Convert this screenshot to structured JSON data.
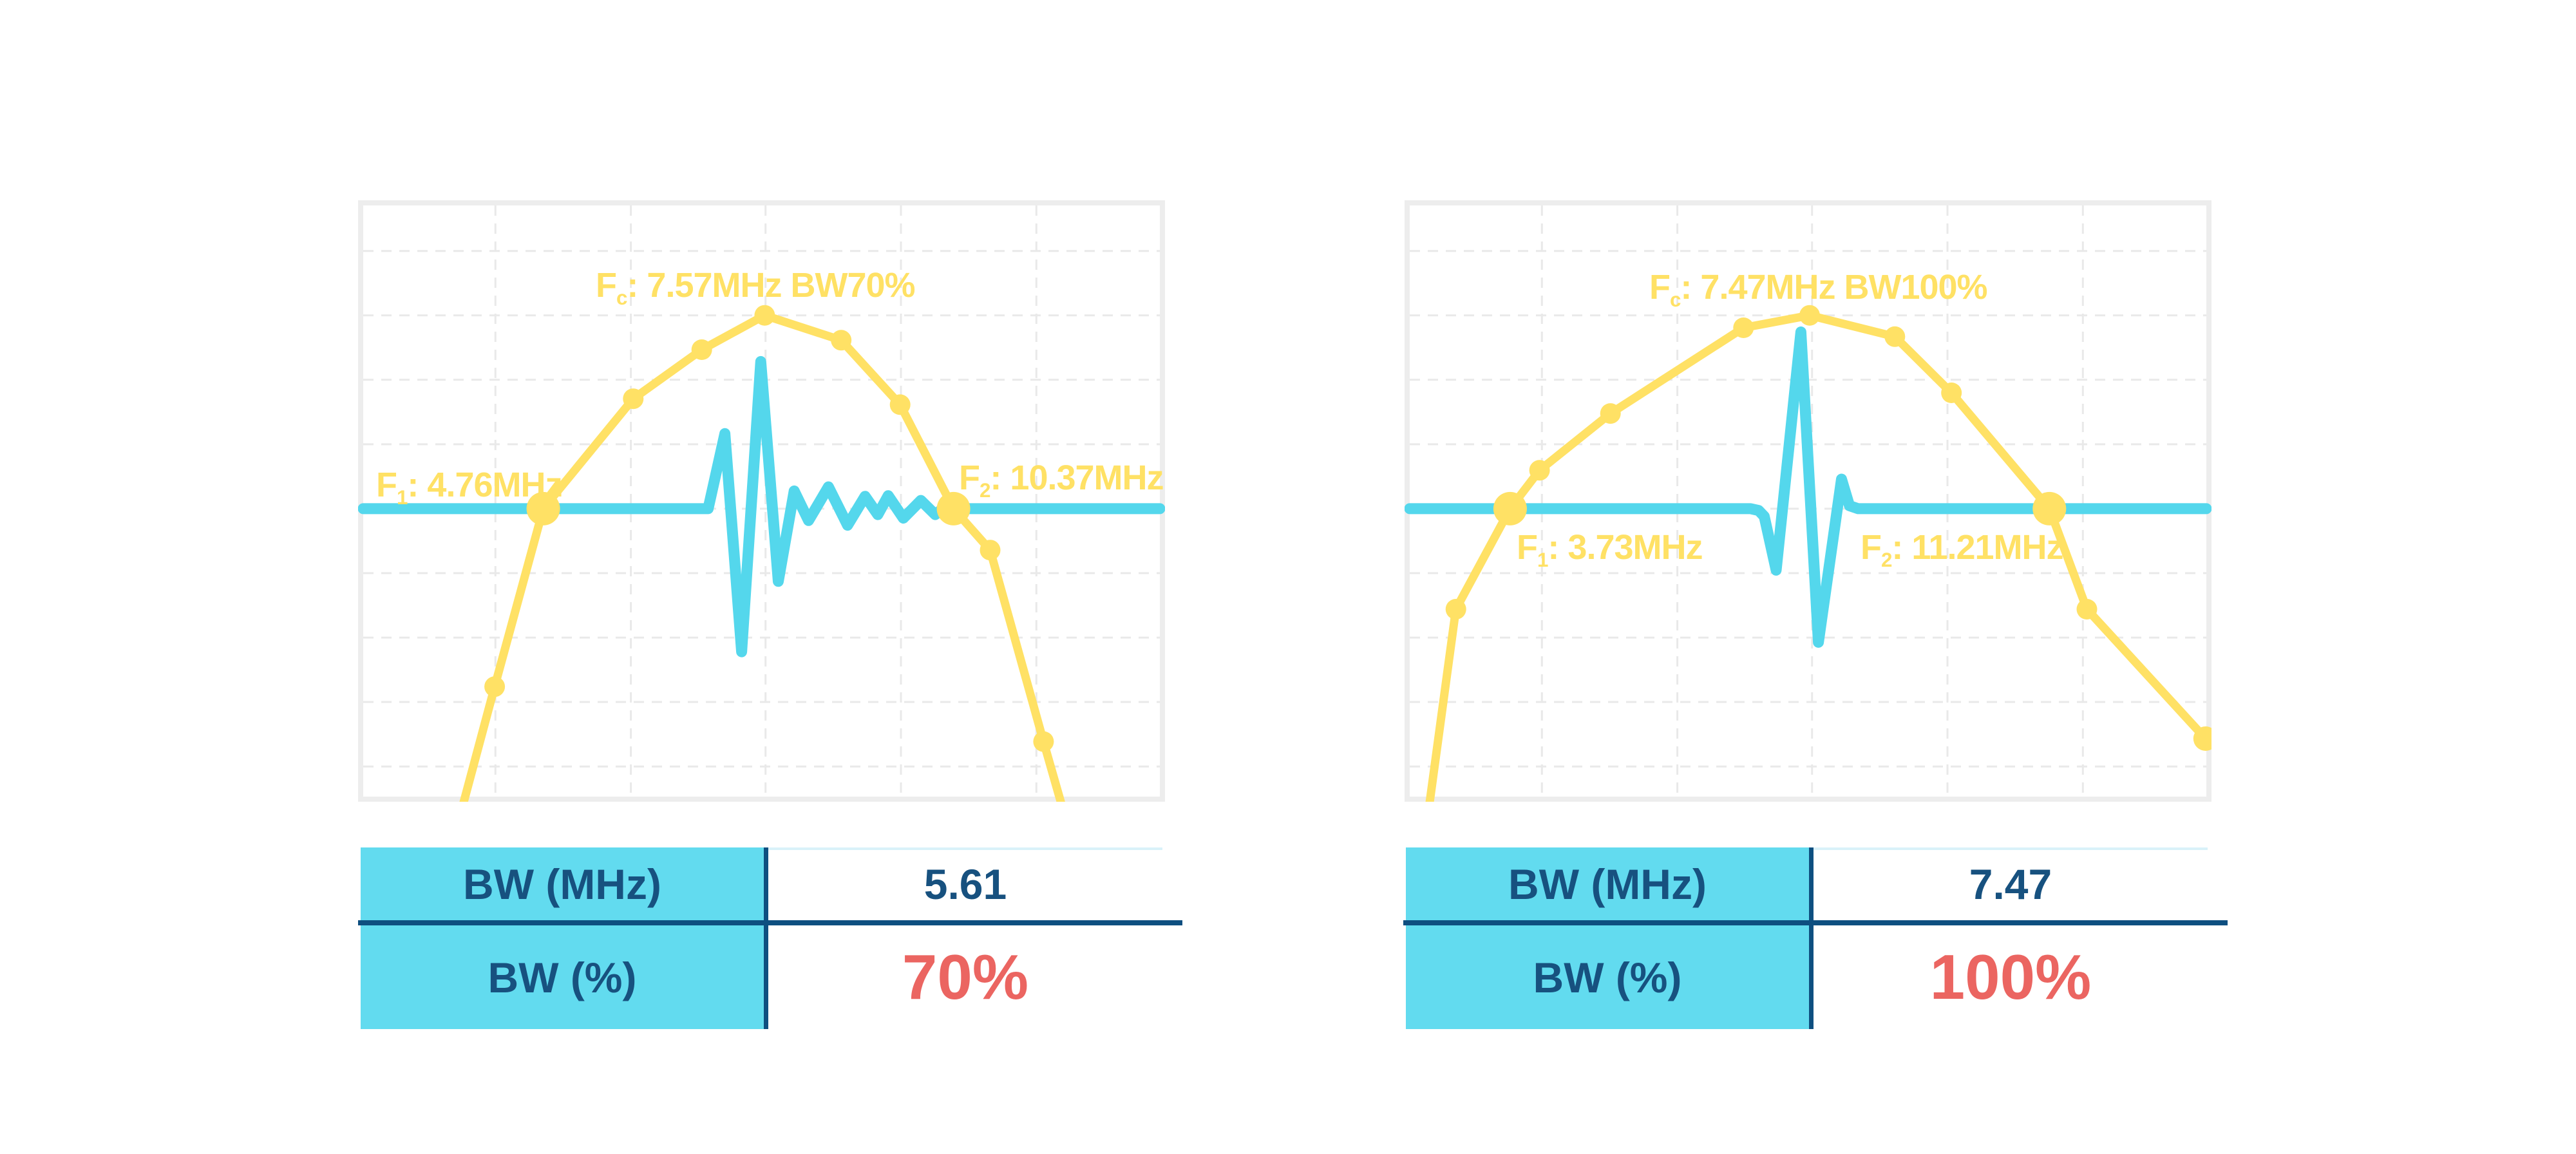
{
  "colors": {
    "yellow": "#FFE165",
    "cyan": "#54D7EC",
    "navy_line": "#0E4F80",
    "navy_text": "#17517F",
    "red": "#EB6561",
    "table_label_bg": "#62DBEF",
    "value_cell_topline": "#D9F2F9",
    "chart_border": "#EDEDED",
    "grid": "#E9E9E9",
    "background": "#FFFFFF"
  },
  "chart_data": [
    {
      "type": "line",
      "id": "pulse-spectrum-bw70",
      "title": {
        "prefix": "F",
        "sub": "c",
        "rest": ": 7.57MHz BW70%"
      },
      "f1_label": {
        "prefix": "F",
        "sub": "1",
        "rest": ": 4.76MHz"
      },
      "f2_label": {
        "prefix": "F",
        "sub": "2",
        "rest": ": 10.37MHz"
      },
      "values": {
        "fc_mhz": 7.57,
        "bw_percent": 70,
        "f1_mhz": 4.76,
        "f2_mhz": 10.37,
        "bw_mhz": 5.61
      },
      "axes": {
        "x_ticks": "none",
        "y_ticks": "none",
        "grid": "dashed",
        "note": "x = frequency (MHz, unlabeled axis); y = amplitude (unlabeled); baseline of pulse coincides with F1/F2 crossing level"
      },
      "series": [
        {
          "name": "spectrum",
          "color_key": "yellow",
          "points": [
            [
              0.124,
              1.02
            ],
            [
              0.165,
              0.814
            ],
            [
              0.226,
              0.513
            ],
            [
              0.339,
              0.327
            ],
            [
              0.425,
              0.244
            ],
            [
              0.504,
              0.186
            ],
            [
              0.6,
              0.228
            ],
            [
              0.674,
              0.337
            ],
            [
              0.741,
              0.513
            ],
            [
              0.787,
              0.583
            ],
            [
              0.854,
              0.907
            ],
            [
              0.878,
              1.02
            ]
          ],
          "markers": [
            [
              0.165,
              0.814
            ],
            [
              0.339,
              0.327
            ],
            [
              0.425,
              0.244
            ],
            [
              0.504,
              0.186
            ],
            [
              0.6,
              0.228
            ],
            [
              0.674,
              0.337
            ],
            [
              0.787,
              0.583
            ],
            [
              0.854,
              0.907
            ]
          ],
          "markers_big": [
            [
              0.226,
              0.513
            ],
            [
              0.741,
              0.513
            ]
          ]
        },
        {
          "name": "pulse-waveform",
          "color_key": "cyan",
          "points": [
            [
              0.0,
              0.513
            ],
            [
              0.425,
              0.513
            ],
            [
              0.433,
              0.513
            ],
            [
              0.454,
              0.386
            ],
            [
              0.475,
              0.755
            ],
            [
              0.499,
              0.264
            ],
            [
              0.521,
              0.636
            ],
            [
              0.541,
              0.483
            ],
            [
              0.559,
              0.533
            ],
            [
              0.584,
              0.476
            ],
            [
              0.608,
              0.541
            ],
            [
              0.63,
              0.492
            ],
            [
              0.646,
              0.523
            ],
            [
              0.659,
              0.491
            ],
            [
              0.678,
              0.529
            ],
            [
              0.7,
              0.499
            ],
            [
              0.718,
              0.523
            ],
            [
              0.732,
              0.508
            ],
            [
              0.745,
              0.513
            ],
            [
              1.0,
              0.513
            ]
          ]
        }
      ]
    },
    {
      "type": "line",
      "id": "pulse-spectrum-bw100",
      "title": {
        "prefix": "F",
        "sub": "c",
        "rest": ": 7.47MHz BW100%"
      },
      "f1_label": {
        "prefix": "F",
        "sub": "1",
        "rest": ": 3.73MHz"
      },
      "f2_label": {
        "prefix": "F",
        "sub": "2",
        "rest": ": 11.21MHz"
      },
      "values": {
        "fc_mhz": 7.47,
        "bw_percent": 100,
        "f1_mhz": 3.73,
        "f2_mhz": 11.21,
        "bw_mhz": 7.47
      },
      "axes": {
        "x_ticks": "none",
        "y_ticks": "none",
        "grid": "dashed",
        "note": "x = frequency (MHz, unlabeled axis); y = amplitude (unlabeled)"
      },
      "series": [
        {
          "name": "spectrum",
          "color_key": "yellow",
          "points": [
            [
              0.024,
              1.02
            ],
            [
              0.058,
              0.683
            ],
            [
              0.126,
              0.513
            ],
            [
              0.163,
              0.448
            ],
            [
              0.252,
              0.352
            ],
            [
              0.419,
              0.207
            ],
            [
              0.502,
              0.186
            ],
            [
              0.609,
              0.222
            ],
            [
              0.68,
              0.317
            ],
            [
              0.803,
              0.513
            ],
            [
              0.85,
              0.683
            ],
            [
              0.999,
              0.902
            ]
          ],
          "markers": [
            [
              0.058,
              0.683
            ],
            [
              0.163,
              0.448
            ],
            [
              0.252,
              0.352
            ],
            [
              0.419,
              0.207
            ],
            [
              0.502,
              0.186
            ],
            [
              0.609,
              0.222
            ],
            [
              0.68,
              0.317
            ],
            [
              0.85,
              0.683
            ]
          ],
          "markers_big": [
            [
              0.126,
              0.513
            ],
            [
              0.803,
              0.513
            ]
          ],
          "marker_open": [
            0.999,
            0.902
          ]
        },
        {
          "name": "pulse-waveform",
          "color_key": "cyan",
          "points": [
            [
              0.0,
              0.513
            ],
            [
              0.428,
              0.513
            ],
            [
              0.438,
              0.516
            ],
            [
              0.445,
              0.526
            ],
            [
              0.46,
              0.617
            ],
            [
              0.491,
              0.214
            ],
            [
              0.513,
              0.739
            ],
            [
              0.542,
              0.463
            ],
            [
              0.552,
              0.508
            ],
            [
              0.563,
              0.513
            ],
            [
              1.0,
              0.513
            ]
          ]
        }
      ]
    }
  ],
  "tables": [
    {
      "rows": [
        {
          "label": "BW (MHz)",
          "value": "5.61"
        },
        {
          "label": "BW (%)",
          "value": "70%"
        }
      ]
    },
    {
      "rows": [
        {
          "label": "BW (MHz)",
          "value": "7.47"
        },
        {
          "label": "BW (%)",
          "value": "100%"
        }
      ]
    }
  ]
}
